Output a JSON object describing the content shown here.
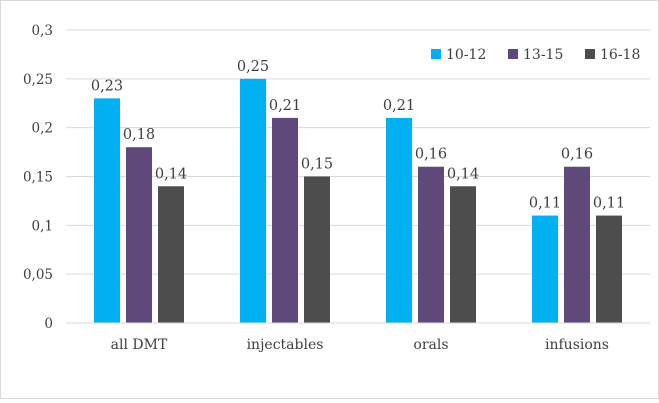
{
  "chart_data": {
    "type": "bar",
    "categories": [
      "all DMT",
      "injectables",
      "orals",
      "infusions"
    ],
    "series": [
      {
        "name": "10-12",
        "color": "#00b0f0",
        "values": [
          0.23,
          0.25,
          0.21,
          0.11
        ],
        "labels": [
          "0,23",
          "0,25",
          "0,21",
          "0,11"
        ]
      },
      {
        "name": "13-15",
        "color": "#5f497a",
        "values": [
          0.18,
          0.21,
          0.16,
          0.16
        ],
        "labels": [
          "0,18",
          "0,21",
          "0,16",
          "0,16"
        ]
      },
      {
        "name": "16-18",
        "color": "#4d4d4d",
        "values": [
          0.14,
          0.15,
          0.14,
          0.11
        ],
        "labels": [
          "0,14",
          "0,15",
          "0,14",
          "0,11"
        ]
      }
    ],
    "ylim": [
      0,
      0.3
    ],
    "yticks": [
      0,
      0.05,
      0.1,
      0.15,
      0.2,
      0.25,
      0.3
    ],
    "ytick_labels": [
      "0",
      "0,05",
      "0,1",
      "0,15",
      "0,2",
      "0,25",
      "0,3"
    ],
    "grid": true,
    "gridline_color": "#d9d9d9",
    "legend_position": "top-right",
    "title": "",
    "xlabel": "",
    "ylabel": ""
  }
}
